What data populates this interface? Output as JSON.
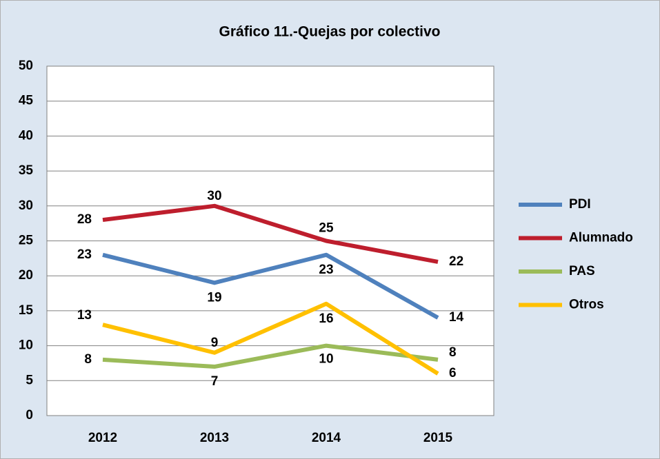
{
  "chart_data": {
    "type": "line",
    "title": "Gráfico 11.-Quejas por colectivo",
    "categories": [
      "2012",
      "2013",
      "2014",
      "2015"
    ],
    "series": [
      {
        "name": "PDI",
        "color": "#4f81bd",
        "values": [
          23,
          19,
          23,
          14
        ]
      },
      {
        "name": "Alumnado",
        "color": "#be1e2d",
        "values": [
          28,
          30,
          25,
          22
        ]
      },
      {
        "name": "PAS",
        "color": "#9bbb59",
        "values": [
          8,
          7,
          10,
          8
        ]
      },
      {
        "name": "Otros",
        "color": "#ffc000",
        "values": [
          13,
          9,
          16,
          6
        ]
      }
    ],
    "ylim": [
      0,
      50
    ],
    "yticks": [
      0,
      5,
      10,
      15,
      20,
      25,
      30,
      35,
      40,
      45,
      50
    ],
    "grid": true,
    "legend": "right"
  }
}
